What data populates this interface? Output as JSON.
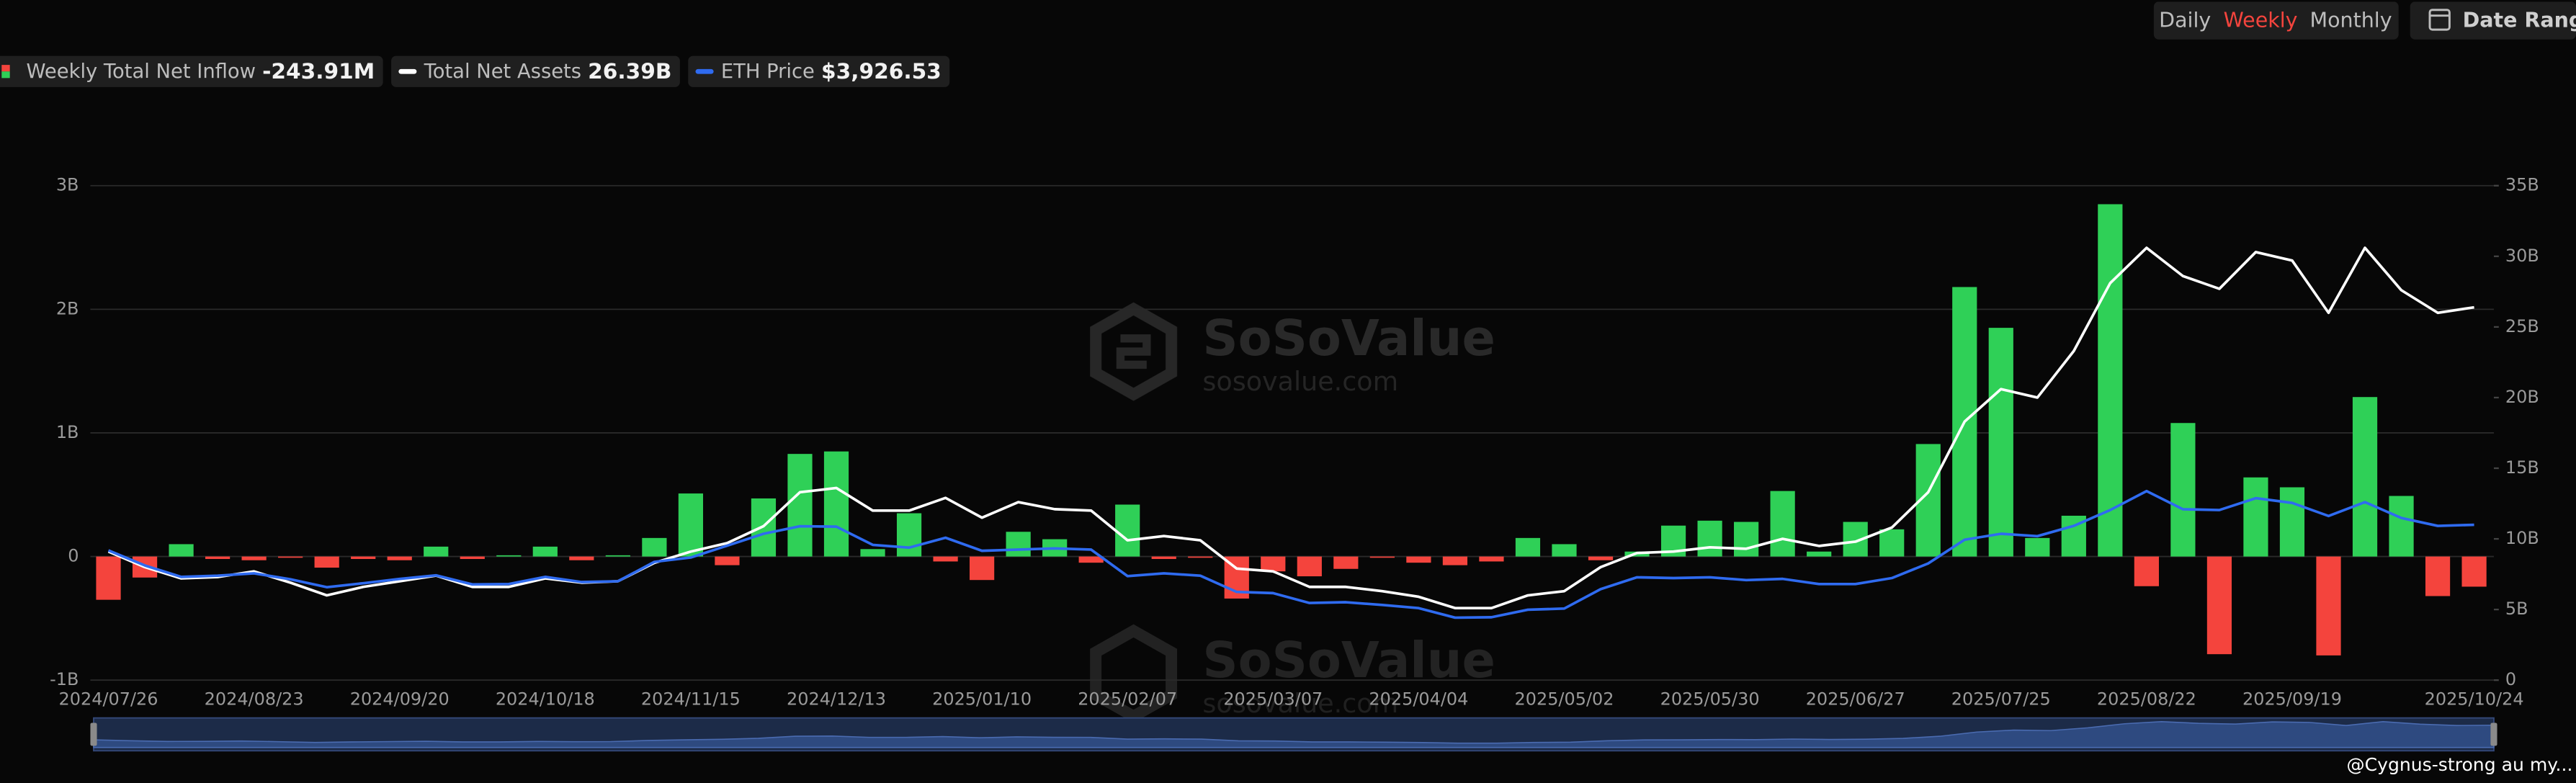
{
  "controls": {
    "intervals": [
      "Daily",
      "Weekly",
      "Monthly"
    ],
    "selected": 1,
    "date_range": "Date Range"
  },
  "watermark": {
    "brand": "SoSoValue",
    "site": "sosovalue.com"
  },
  "footer": "@Cygnus-strong au my...",
  "chart_data": {
    "type": "bar-line",
    "categories": [
      "2024/07/26",
      null,
      null,
      null,
      "2024/08/23",
      null,
      null,
      null,
      "2024/09/20",
      null,
      null,
      null,
      "2024/10/18",
      null,
      null,
      null,
      "2024/11/15",
      null,
      null,
      null,
      "2024/12/13",
      null,
      null,
      null,
      "2025/01/10",
      null,
      null,
      null,
      "2025/02/07",
      null,
      null,
      null,
      "2025/03/07",
      null,
      null,
      null,
      "2025/04/04",
      null,
      null,
      null,
      "2025/05/02",
      null,
      null,
      null,
      "2025/05/30",
      null,
      null,
      null,
      "2025/06/27",
      null,
      null,
      null,
      "2025/07/25",
      null,
      null,
      null,
      "2025/08/22",
      null,
      null,
      null,
      "2025/09/19",
      null,
      null,
      null,
      null,
      "2025/10/24"
    ],
    "series": [
      {
        "name": "Weekly Total Net Inflow",
        "type": "bar",
        "color": "#2fd057",
        "negative_color": "#f4443d",
        "values": [
          -0.35,
          -0.17,
          0.1,
          -0.02,
          -0.03,
          -0.01,
          -0.09,
          -0.02,
          -0.03,
          0.08,
          -0.02,
          0.01,
          0.08,
          -0.03,
          0.01,
          0.15,
          0.51,
          -0.07,
          0.47,
          0.83,
          0.85,
          0.06,
          0.35,
          -0.04,
          -0.19,
          0.2,
          0.14,
          -0.05,
          0.42,
          -0.02,
          -0.01,
          -0.34,
          -0.12,
          -0.16,
          -0.1,
          -0.01,
          -0.05,
          -0.07,
          -0.04,
          0.15,
          0.1,
          -0.03,
          0.04,
          0.25,
          0.29,
          0.28,
          0.53,
          0.04,
          0.28,
          0.22,
          0.91,
          2.18,
          1.85,
          0.15,
          0.33,
          2.85,
          -0.24,
          1.08,
          -0.79,
          0.64,
          0.56,
          -0.8,
          1.29,
          0.49,
          -0.32,
          -0.24391
        ],
        "value_labels": [
          null,
          null,
          null,
          null,
          null,
          null,
          null,
          null,
          null,
          null,
          null,
          null,
          null,
          null,
          null,
          null,
          null,
          null,
          null,
          null,
          null,
          null,
          null,
          null,
          null,
          null,
          null,
          null,
          null,
          null,
          null,
          null,
          null,
          null,
          null,
          null,
          null,
          null,
          null,
          null,
          null,
          null,
          null,
          null,
          null,
          null,
          null,
          null,
          null,
          null,
          null,
          null,
          null,
          null,
          null,
          null,
          null,
          null,
          null,
          null,
          null,
          null,
          null,
          null,
          null,
          "-243.91M"
        ]
      },
      {
        "name": "Total Net Assets",
        "type": "line",
        "axis": "y2",
        "color": "#ffffff",
        "values": [
          9.1,
          8.0,
          7.2,
          7.3,
          7.7,
          6.9,
          6.0,
          6.6,
          7.0,
          7.4,
          6.6,
          6.6,
          7.2,
          6.9,
          7.0,
          8.3,
          9.1,
          9.7,
          10.9,
          13.3,
          13.6,
          12.0,
          12.0,
          12.9,
          11.5,
          12.6,
          12.1,
          12.0,
          9.9,
          10.2,
          9.9,
          7.9,
          7.7,
          6.6,
          6.6,
          6.3,
          5.9,
          5.1,
          5.1,
          6.0,
          6.3,
          8.0,
          9.0,
          9.1,
          9.4,
          9.3,
          10.0,
          9.5,
          9.8,
          10.8,
          13.3,
          18.3,
          20.6,
          20.0,
          23.3,
          28.1,
          30.6,
          28.6,
          27.7,
          30.3,
          29.7,
          26.0,
          30.6,
          27.6,
          26.0,
          26.39
        ],
        "value_labels": [
          null,
          null,
          null,
          null,
          null,
          null,
          null,
          null,
          null,
          null,
          null,
          null,
          null,
          null,
          null,
          null,
          null,
          null,
          null,
          null,
          null,
          null,
          null,
          null,
          null,
          null,
          null,
          null,
          null,
          null,
          null,
          null,
          null,
          null,
          null,
          null,
          null,
          null,
          null,
          null,
          null,
          null,
          null,
          null,
          null,
          null,
          null,
          null,
          null,
          null,
          null,
          null,
          null,
          null,
          null,
          null,
          null,
          null,
          null,
          null,
          null,
          null,
          null,
          null,
          null,
          "26.39B"
        ]
      },
      {
        "name": "ETH Price",
        "type": "line",
        "axis": "y3",
        "color": "#2f6bf0",
        "values": [
          3280,
          2900,
          2610,
          2640,
          2700,
          2550,
          2350,
          2450,
          2560,
          2650,
          2420,
          2430,
          2610,
          2480,
          2500,
          2990,
          3100,
          3400,
          3700,
          3890,
          3880,
          3420,
          3350,
          3600,
          3270,
          3300,
          3330,
          3300,
          2630,
          2700,
          2640,
          2230,
          2200,
          1950,
          1970,
          1900,
          1820,
          1580,
          1590,
          1780,
          1810,
          2300,
          2600,
          2580,
          2600,
          2530,
          2560,
          2430,
          2430,
          2580,
          2950,
          3550,
          3700,
          3640,
          3900,
          4300,
          4780,
          4320,
          4300,
          4600,
          4480,
          4150,
          4500,
          4100,
          3900,
          3926.53
        ],
        "value_labels": [
          null,
          null,
          null,
          null,
          null,
          null,
          null,
          null,
          null,
          null,
          null,
          null,
          null,
          null,
          null,
          null,
          null,
          null,
          null,
          null,
          null,
          null,
          null,
          null,
          null,
          null,
          null,
          null,
          null,
          null,
          null,
          null,
          null,
          null,
          null,
          null,
          null,
          null,
          null,
          null,
          null,
          null,
          null,
          null,
          null,
          null,
          null,
          null,
          null,
          null,
          null,
          null,
          null,
          null,
          null,
          null,
          null,
          null,
          null,
          null,
          null,
          null,
          null,
          null,
          null,
          "$3,926.53"
        ]
      }
    ],
    "ylim": [
      -1,
      3
    ],
    "yticks": [
      {
        "value": -1,
        "label": "-1B"
      },
      0,
      {
        "value": 1,
        "label": "1B"
      },
      {
        "value": 2,
        "label": "2B"
      },
      {
        "value": 3,
        "label": "3B"
      }
    ],
    "y2lim": [
      0,
      35
    ],
    "y2ticks": [
      0,
      {
        "value": 5,
        "label": "5B"
      },
      {
        "value": 10,
        "label": "10B"
      },
      {
        "value": 15,
        "label": "15B"
      },
      {
        "value": 20,
        "label": "20B"
      },
      {
        "value": 25,
        "label": "25B"
      },
      {
        "value": 30,
        "label": "30B"
      },
      {
        "value": 35,
        "label": "35B"
      }
    ],
    "y3lim": [
      0,
      12500
    ],
    "grid": true
  }
}
